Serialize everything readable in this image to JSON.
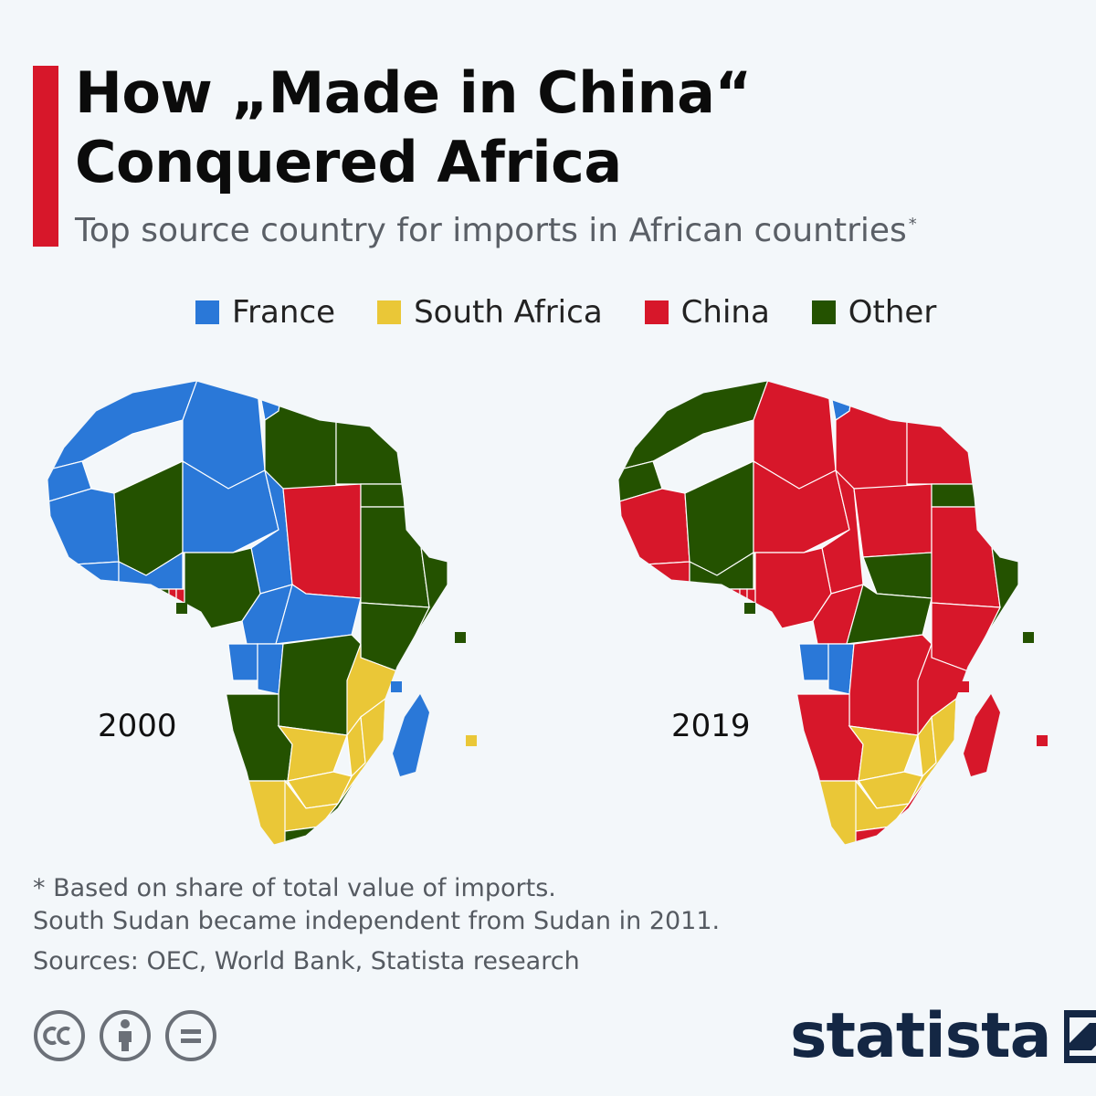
{
  "header": {
    "title_line1": "How „Made in China“",
    "title_line2": "Conquered Africa",
    "subtitle": "Top source country for imports in African countries",
    "subtitle_mark": "*"
  },
  "legend": [
    {
      "label": "France",
      "color": "#2a78d8"
    },
    {
      "label": "South Africa",
      "color": "#eac737"
    },
    {
      "label": "China",
      "color": "#d7172a"
    },
    {
      "label": "Other",
      "color": "#245200"
    }
  ],
  "maps": [
    {
      "year": "2000",
      "countries": {
        "morocco": "France",
        "algeria": "France",
        "tunisia": "France",
        "western_sahara": "France",
        "mauritania": "France",
        "mali": "Other",
        "niger": "France",
        "chad": "France",
        "senegal": "France",
        "guinea": "France",
        "cote_divoire": "France",
        "burkina_faso": "France",
        "ghana": "Other",
        "togo": "China",
        "benin": "China",
        "nigeria": "Other",
        "cameroon": "France",
        "central_african_republic": "France",
        "gabon": "France",
        "congo": "France",
        "libya": "Other",
        "egypt": "Other",
        "sudan": "China",
        "ethiopia": "Other",
        "eritrea": "Other",
        "somalia": "Other",
        "kenya": "Other",
        "dr_congo": "Other",
        "angola": "Other",
        "tanzania": "South Africa",
        "zambia": "South Africa",
        "malawi": "South Africa",
        "mozambique": "South Africa",
        "zimbabwe": "South Africa",
        "namibia": "South Africa",
        "botswana": "South Africa",
        "south_africa": "Other",
        "lesotho": "South Africa",
        "madagascar": "France",
        "cape_verde": "Other",
        "sao_tome": "Other",
        "seychelles": "Other",
        "comoros": "France",
        "mauritius": "South Africa"
      }
    },
    {
      "year": "2019",
      "countries": {
        "morocco": "Other",
        "algeria": "China",
        "tunisia": "France",
        "western_sahara": "Other",
        "mauritania": "China",
        "mali": "Other",
        "niger": "China",
        "chad": "China",
        "senegal": "China",
        "guinea": "China",
        "cote_divoire": "China",
        "burkina_faso": "Other",
        "ghana": "China",
        "togo": "China",
        "benin": "China",
        "nigeria": "China",
        "cameroon": "China",
        "central_african_republic": "Other",
        "south_sudan": "Other",
        "gabon": "France",
        "congo": "France",
        "libya": "China",
        "egypt": "China",
        "sudan": "China",
        "ethiopia": "China",
        "eritrea": "Other",
        "somalia": "Other",
        "kenya": "China",
        "dr_congo": "China",
        "angola": "China",
        "tanzania": "China",
        "zambia": "South Africa",
        "malawi": "South Africa",
        "mozambique": "South Africa",
        "zimbabwe": "South Africa",
        "namibia": "South Africa",
        "botswana": "South Africa",
        "south_africa": "China",
        "lesotho": "South Africa",
        "madagascar": "China",
        "cape_verde": "Other",
        "sao_tome": "Other",
        "seychelles": "Other",
        "comoros": "China",
        "mauritius": "China"
      }
    }
  ],
  "notes": {
    "line1": "* Based on share of total value of imports.",
    "line2": "South Sudan became independent from Sudan in 2011.",
    "sources": "Sources: OEC, World Bank, Statista research"
  },
  "brand": {
    "name": "statista"
  },
  "license_icons": [
    "cc-icon",
    "attribution-icon",
    "no-derivatives-icon"
  ]
}
